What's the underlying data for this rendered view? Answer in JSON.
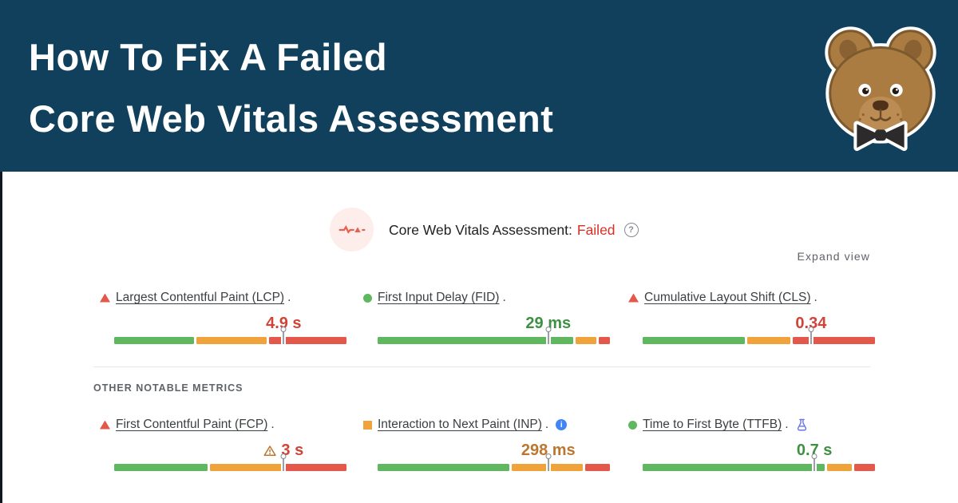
{
  "header": {
    "bg_color": "#11405c",
    "title_line1": "How To Fix A Failed",
    "title_line2": "Core Web Vitals Assessment"
  },
  "assessment": {
    "title": "Core Web Vitals Assessment:",
    "status": "Failed",
    "status_color": "#d93025",
    "help_glyph": "?",
    "expand_label": "Expand view"
  },
  "section_label": "OTHER NOTABLE METRICS",
  "icons": {
    "info_glyph": "i"
  },
  "colors": {
    "bar_green": "#5fb760",
    "bar_orange": "#f0a33a",
    "bar_red": "#e4574b",
    "value_red": "#d04437",
    "value_green": "#3e9142",
    "value_orange": "#bd7630",
    "warning_icon": "#bd7630",
    "flask_icon": "#6673e8",
    "info_icon": "#4285f4"
  },
  "metrics": [
    {
      "id": "lcp",
      "label": "Largest Contentful Paint (LCP)",
      "suffix": ".",
      "status": "poor",
      "status_icon": "triangle",
      "value": "4.9 s",
      "value_tone": "red",
      "bar_segments": [
        35,
        31,
        34
      ],
      "marker_pct": 74.5
    },
    {
      "id": "fid",
      "label": "First Input Delay (FID)",
      "suffix": ".",
      "status": "good",
      "status_icon": "circle",
      "value": "29 ms",
      "value_tone": "green",
      "bar_segments": [
        86,
        9,
        5
      ],
      "marker_pct": 75
    },
    {
      "id": "cls",
      "label": "Cumulative Layout Shift (CLS)",
      "suffix": ".",
      "status": "poor",
      "status_icon": "triangle",
      "value": "0.34",
      "value_tone": "red",
      "bar_segments": [
        45,
        19,
        36
      ],
      "marker_pct": 74
    },
    {
      "id": "fcp",
      "label": "First Contentful Paint (FCP)",
      "suffix": ".",
      "status": "poor",
      "status_icon": "triangle",
      "value": "3 s",
      "value_tone": "red",
      "value_prefix_icon": "warning",
      "bar_segments": [
        41,
        32,
        27
      ],
      "marker_pct": 74.5
    },
    {
      "id": "inp",
      "label": "Interaction to Next Paint (INP)",
      "suffix": ".",
      "status": "average",
      "status_icon": "square",
      "value": "298 ms",
      "value_tone": "orange",
      "trailing_icon": "info",
      "bar_segments": [
        58,
        31,
        11
      ],
      "marker_pct": 75
    },
    {
      "id": "ttfb",
      "label": "Time to First Byte (TTFB)",
      "suffix": ".",
      "status": "good",
      "status_icon": "circle",
      "value": "0.7 s",
      "value_tone": "green",
      "trailing_icon": "flask",
      "bar_segments": [
        80,
        11,
        9
      ],
      "marker_pct": 75.5
    }
  ]
}
